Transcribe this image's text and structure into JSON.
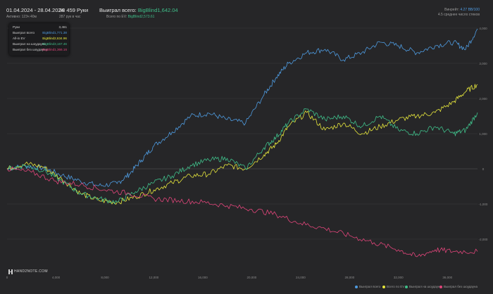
{
  "header": {
    "date_range": "01.04.2024 - 28.04.2024",
    "date_sub": "Активно: 123ч 40м",
    "hands_count": "38 459 Руки",
    "hands_sub": "287 рук в час",
    "won_label": "Выиграл всего:",
    "won_value": "BigBlind1,642.04",
    "ev_label": "Всего по EV:",
    "ev_value": "BigBlind2,573.61",
    "winrate_label": "Винрейт:",
    "winrate_value": "4.27 BB/100",
    "stdev_text": "4.5 среднее число стеков"
  },
  "legend_box": {
    "rows": [
      {
        "label": "Руки",
        "value": "3,461",
        "color": "#cfcfcf"
      },
      {
        "label": "Выиграл всего",
        "value": "BigBlind1,771.38",
        "color": "#4e9be0"
      },
      {
        "label": "All-in EV",
        "value": "BigBlind2,634.96",
        "color": "#e6e63c"
      },
      {
        "label": "Выиграл на шоудауне",
        "value": "BigBlind3,167.46",
        "color": "#3fbf8a"
      },
      {
        "label": "Выиграл без шоудауна",
        "value": "-BigBlind1,366.16",
        "color": "#e0457a"
      }
    ]
  },
  "brand": "HAND2NOTE.COM",
  "bottom_legend": [
    {
      "label": "Выиграл всего",
      "color": "#4e9be0"
    },
    {
      "label": "Всего по EV",
      "color": "#e6e63c"
    },
    {
      "label": "Выиграл на шоудауне",
      "color": "#3fbf8a"
    },
    {
      "label": "Выиграл без шоудауна",
      "color": "#e0457a"
    }
  ],
  "chart_data": {
    "type": "line",
    "xlabel": "",
    "ylabel": "",
    "xlim": [
      0,
      38459
    ],
    "ylim": [
      -2800,
      4000
    ],
    "x_ticks": [
      "0",
      "4,000",
      "8,000",
      "12,000",
      "16,000",
      "20,000",
      "24,000",
      "28,000",
      "32,000",
      "36,000"
    ],
    "x_tick_values": [
      0,
      4000,
      8000,
      12000,
      16000,
      20000,
      24000,
      28000,
      32000,
      36000
    ],
    "y_ticks": [
      "4,000",
      "3,000",
      "2,000",
      "1,000",
      "0",
      "-1,000",
      "-2,000"
    ],
    "y_tick_values": [
      4000,
      3000,
      2000,
      1000,
      0,
      -1000,
      -2000
    ],
    "grid": true,
    "series": [
      {
        "name": "Выиграл всего",
        "color": "#4e9be0",
        "x": [
          0,
          1500,
          3000,
          4500,
          6000,
          7500,
          9000,
          10000,
          11000,
          12000,
          13500,
          15000,
          16500,
          18000,
          19500,
          21000,
          22000,
          23000,
          24500,
          26000,
          27500,
          29000,
          30500,
          32000,
          33500,
          35000,
          36500,
          37500,
          38459
        ],
        "y": [
          0,
          80,
          20,
          -180,
          -350,
          -480,
          -420,
          -150,
          250,
          650,
          1050,
          1500,
          1580,
          1400,
          1300,
          2100,
          2600,
          3000,
          3300,
          3400,
          3100,
          3300,
          3600,
          3500,
          3300,
          3500,
          3600,
          3400,
          3980
        ]
      },
      {
        "name": "Всего по EV",
        "color": "#e6e63c",
        "x": [
          0,
          1500,
          3000,
          4500,
          6000,
          7500,
          9000,
          10500,
          12000,
          13500,
          15000,
          16500,
          18000,
          19500,
          21000,
          22000,
          23000,
          24500,
          26000,
          27500,
          29000,
          30500,
          32000,
          33500,
          35000,
          36500,
          37500,
          38459
        ],
        "y": [
          0,
          150,
          50,
          -300,
          -700,
          -900,
          -950,
          -800,
          -600,
          -400,
          -200,
          -150,
          100,
          0,
          400,
          700,
          1200,
          1600,
          1100,
          1300,
          1000,
          1200,
          1400,
          1500,
          1600,
          1900,
          2200,
          2400
        ]
      },
      {
        "name": "Выиграл на шоудауне",
        "color": "#3fbf8a",
        "x": [
          0,
          1500,
          3000,
          4500,
          6000,
          7500,
          9000,
          10500,
          12000,
          13500,
          15000,
          16500,
          18000,
          19500,
          21000,
          22000,
          23000,
          24500,
          26000,
          27500,
          29000,
          30500,
          32000,
          33500,
          35000,
          36500,
          37500,
          38459
        ],
        "y": [
          0,
          100,
          -50,
          -350,
          -700,
          -850,
          -950,
          -650,
          -400,
          -200,
          100,
          250,
          300,
          0,
          600,
          900,
          1300,
          1700,
          1400,
          1500,
          1200,
          1500,
          1100,
          1000,
          1200,
          1000,
          1100,
          1600
        ]
      },
      {
        "name": "Выиграл без шоудауна",
        "color": "#e0457a",
        "x": [
          0,
          2000,
          4000,
          6000,
          8000,
          10000,
          12000,
          14000,
          16000,
          18000,
          20000,
          22000,
          24000,
          26000,
          28000,
          30000,
          32000,
          33500,
          35000,
          36500,
          38459
        ],
        "y": [
          0,
          -100,
          -350,
          -450,
          -600,
          -700,
          -850,
          -900,
          -950,
          -1050,
          -1150,
          -1300,
          -1550,
          -1700,
          -1900,
          -2100,
          -2300,
          -2500,
          -2300,
          -2350,
          -2350
        ]
      }
    ]
  }
}
